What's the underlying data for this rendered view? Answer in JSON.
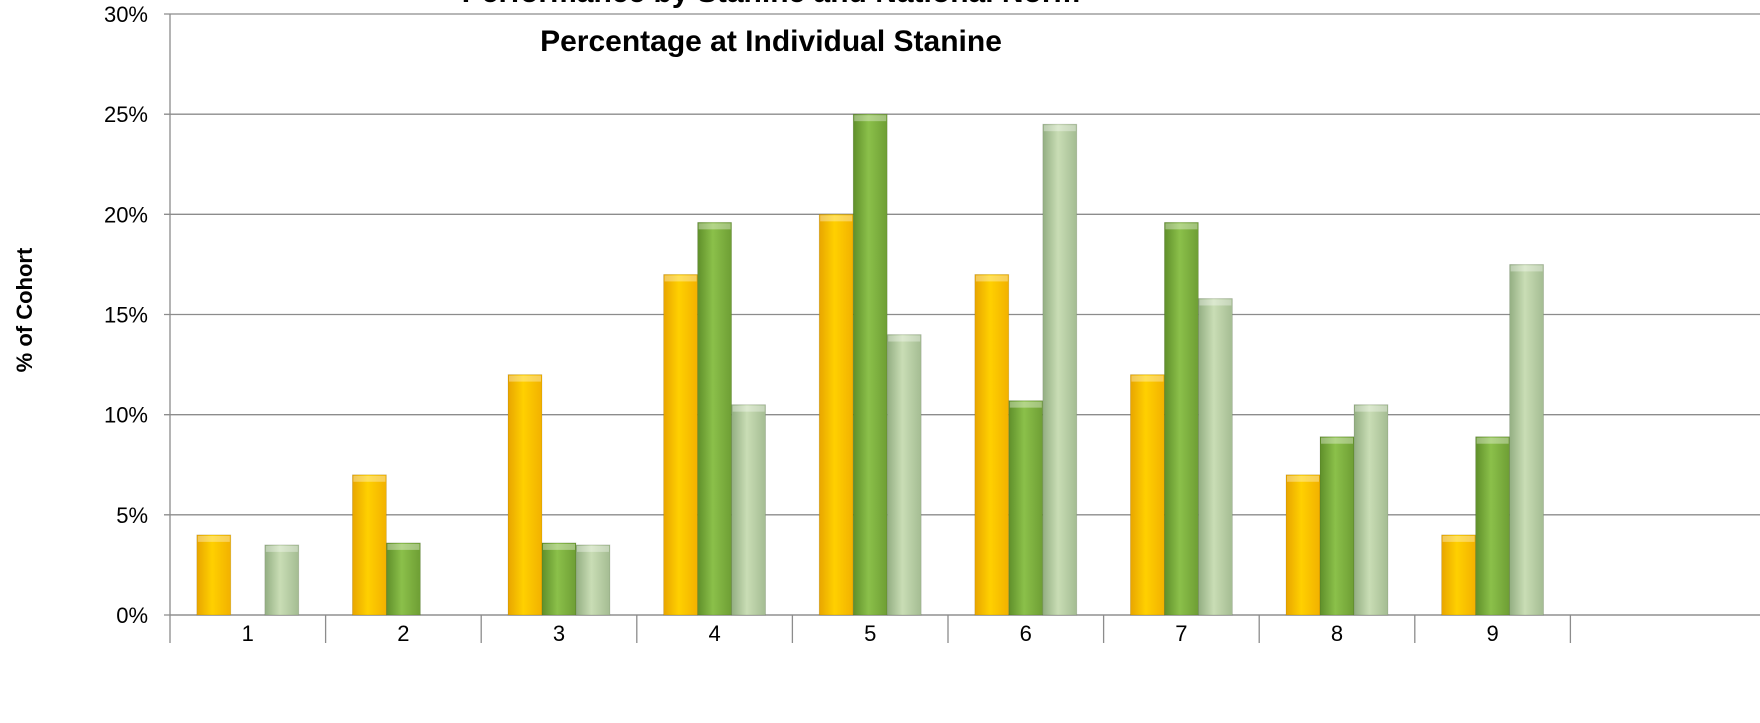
{
  "chart_data": {
    "type": "bar",
    "title_lines": [
      "Performance by Stanine and National Norm",
      "Percentage at Individual Stanine"
    ],
    "xlabel": "",
    "ylabel": "% of Cohort",
    "categories": [
      "1",
      "2",
      "3",
      "4",
      "5",
      "6",
      "7",
      "8",
      "9"
    ],
    "ylim": [
      0,
      30
    ],
    "yticks": [
      0,
      5,
      10,
      15,
      20,
      25,
      30
    ],
    "ytick_labels": [
      "0%",
      "5%",
      "10%",
      "15%",
      "20%",
      "25%",
      "30%"
    ],
    "grid": true,
    "series": [
      {
        "color": "#FFC000",
        "values": [
          4,
          7,
          12,
          17,
          20,
          17,
          12,
          7,
          4
        ]
      },
      {
        "color": "#7EAE3C",
        "values": [
          0,
          3.6,
          3.6,
          19.6,
          25,
          10.7,
          19.6,
          8.9,
          8.9
        ]
      },
      {
        "color": "#B3C9A0",
        "values": [
          3.5,
          0,
          3.5,
          10.5,
          14,
          24.5,
          15.8,
          10.5,
          17.5
        ]
      }
    ]
  }
}
